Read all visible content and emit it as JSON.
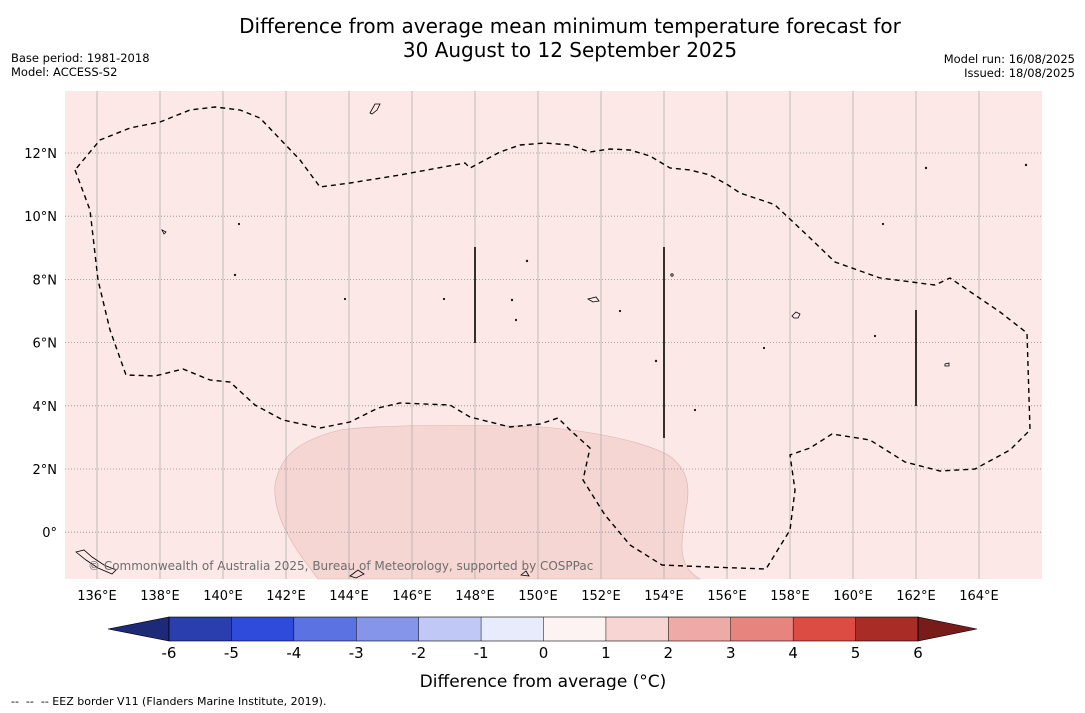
{
  "title": {
    "line1": "Difference from average mean minimum temperature forecast for",
    "line2": "30 August to 12 September 2025"
  },
  "meta_left": {
    "base_period": "Base period: 1981-2018",
    "model": "Model: ACCESS-S2"
  },
  "meta_right": {
    "model_run": "Model run: 16/08/2025",
    "issued": "Issued: 18/08/2025"
  },
  "map": {
    "lon_labels": [
      "136°E",
      "138°E",
      "140°E",
      "142°E",
      "144°E",
      "146°E",
      "148°E",
      "150°E",
      "152°E",
      "154°E",
      "156°E",
      "158°E",
      "160°E",
      "162°E",
      "164°E"
    ],
    "lat_labels": [
      "12°N",
      "10°N",
      "8°N",
      "6°N",
      "4°N",
      "2°N",
      "0°"
    ],
    "background_color": "#fbe8e7",
    "anomaly_region_color": "#f5d6d3",
    "copyright": "© Commonwealth of Australia 2025, Bureau of Meteorology, supported by COSPPac"
  },
  "colorbar": {
    "label": "Difference from average (°C)",
    "tick_labels": [
      "-6",
      "-5",
      "-4",
      "-3",
      "-2",
      "-1",
      "0",
      "1",
      "2",
      "3",
      "4",
      "5",
      "6"
    ],
    "colors": [
      "#2a3ead",
      "#2e4bdc",
      "#5b72e3",
      "#8596ea",
      "#c0c8f5",
      "#e8ebfb",
      "#fdf3f2",
      "#f6d5d2",
      "#edaaa6",
      "#e8847e",
      "#dc4c42",
      "#a92c27"
    ],
    "under_color": "#1c2a78",
    "over_color": "#781c19"
  },
  "footer": "--  --  -- EEZ border V11 (Flanders Marine Institute, 2019)."
}
